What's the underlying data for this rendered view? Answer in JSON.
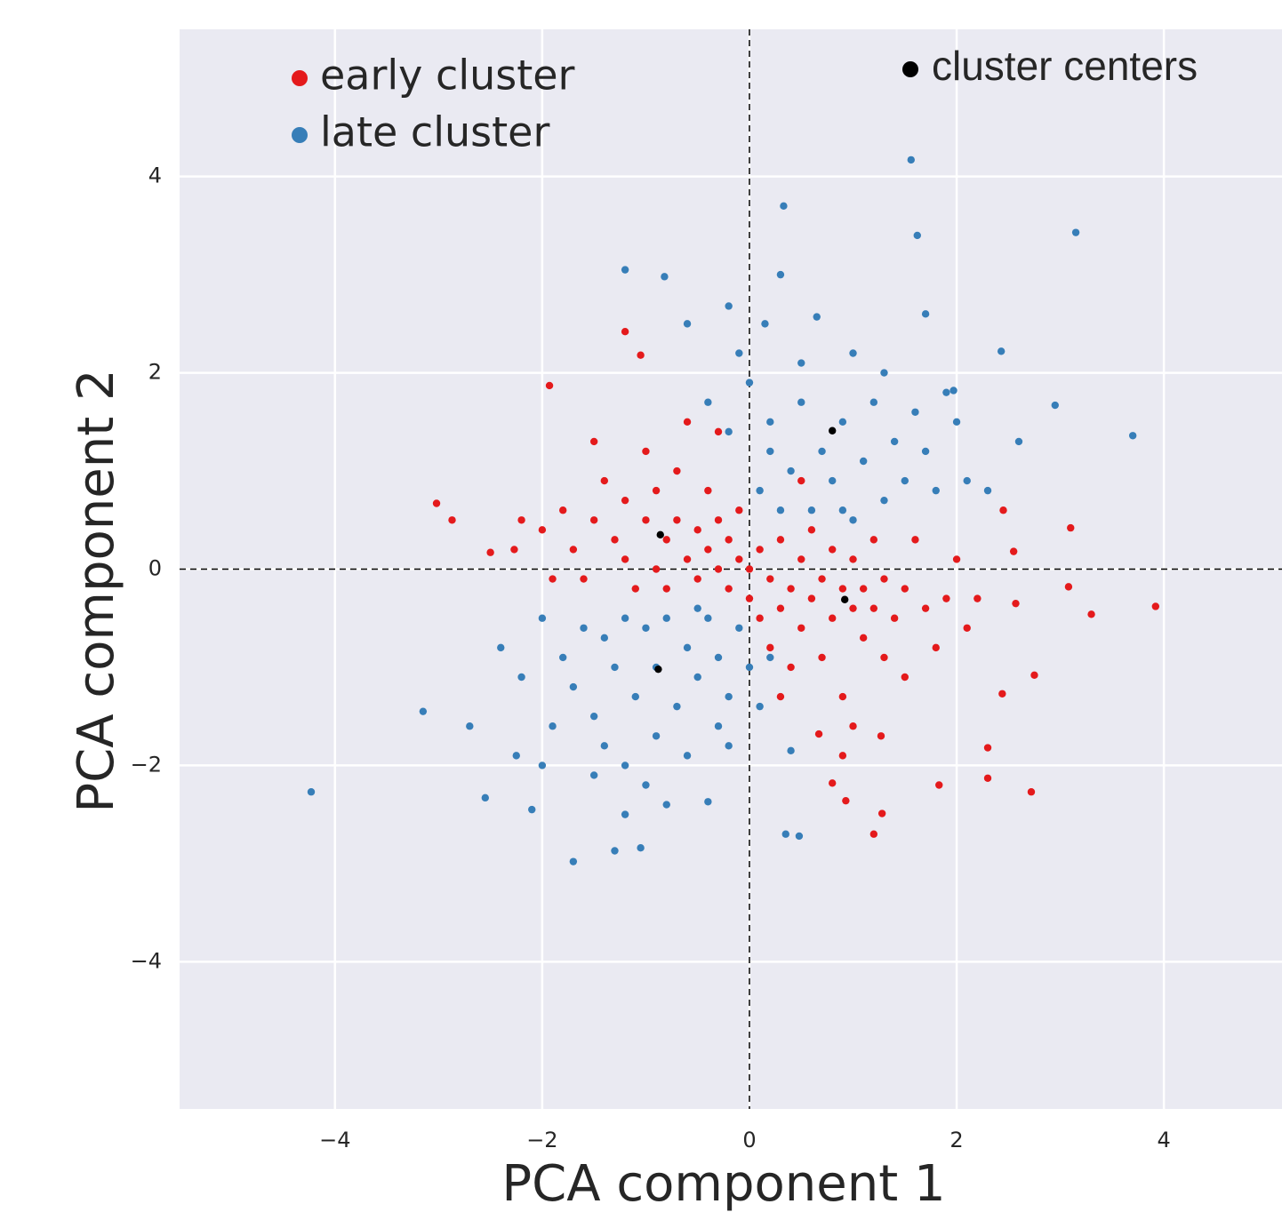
{
  "chart_data": {
    "type": "scatter",
    "xlabel": "PCA component 1",
    "ylabel": "PCA component 2",
    "xlim": [
      -5.5,
      5.14
    ],
    "ylim": [
      -5.5,
      5.5
    ],
    "xticks": [
      {
        "value": -4,
        "label": "−4"
      },
      {
        "value": -2,
        "label": "−2"
      },
      0,
      2,
      4
    ],
    "yticks": [
      {
        "value": -4,
        "label": "−4"
      },
      {
        "value": -2,
        "label": "−2"
      },
      0,
      2,
      4
    ],
    "grid": true,
    "hlines": [
      0
    ],
    "vlines": [
      0
    ],
    "series": [
      {
        "name": "early cluster",
        "color": "#e41a1c",
        "legend": "upper left",
        "x": [
          3.92,
          3.3,
          3.1,
          3.08,
          2.75,
          2.72,
          2.44,
          2.3,
          2.3,
          1.83,
          1.2,
          1.28,
          0.93,
          0.8,
          -1.2,
          -1.05,
          -1.93,
          -3.02,
          -2.87,
          -2.5,
          -2.27,
          2.45,
          2.55,
          0.67,
          1.27,
          2.57,
          -2.0,
          -1.8,
          -1.7,
          -1.6,
          -1.5,
          -1.4,
          -1.3,
          -1.2,
          -1.2,
          -1.1,
          -1.0,
          -1.0,
          -0.9,
          -0.9,
          -0.8,
          -0.8,
          -0.7,
          -0.7,
          -0.6,
          -0.6,
          -0.5,
          -0.5,
          -0.4,
          -0.4,
          -0.3,
          -0.3,
          -0.2,
          -0.2,
          -0.1,
          -0.1,
          0.0,
          0.0,
          0.1,
          0.1,
          0.2,
          0.2,
          0.3,
          0.3,
          0.4,
          0.4,
          0.5,
          0.5,
          0.6,
          0.6,
          0.7,
          0.7,
          0.8,
          0.8,
          0.9,
          0.9,
          1.0,
          1.0,
          1.1,
          1.1,
          1.2,
          1.2,
          1.3,
          1.3,
          1.4,
          1.5,
          1.5,
          1.6,
          1.7,
          1.8,
          1.9,
          2.0,
          2.1,
          2.2,
          -1.5,
          -0.3,
          0.5,
          1.0,
          -2.2,
          -1.9,
          0.3,
          0.9
        ],
        "values": [
          -0.38,
          -0.46,
          0.42,
          -0.18,
          -1.08,
          -2.27,
          -1.27,
          -1.82,
          -2.13,
          -2.2,
          -2.7,
          -2.49,
          -2.36,
          -2.18,
          2.42,
          2.18,
          1.87,
          0.67,
          0.5,
          0.17,
          0.2,
          0.6,
          0.18,
          -1.68,
          -1.7,
          -0.35,
          0.4,
          0.6,
          0.2,
          -0.1,
          0.5,
          0.9,
          0.3,
          0.1,
          0.7,
          -0.2,
          0.5,
          1.2,
          0.0,
          0.8,
          0.3,
          -0.2,
          1.0,
          0.5,
          0.1,
          1.5,
          0.4,
          -0.1,
          0.8,
          0.2,
          0.0,
          0.5,
          0.3,
          -0.2,
          0.1,
          0.6,
          0.0,
          -0.3,
          0.2,
          -0.5,
          -0.1,
          -0.8,
          0.3,
          -0.4,
          -0.2,
          -1.0,
          0.1,
          -0.6,
          -0.3,
          0.4,
          -0.9,
          -0.1,
          -0.5,
          0.2,
          -0.2,
          -1.3,
          -0.4,
          0.1,
          -0.7,
          -0.2,
          -0.4,
          0.3,
          -0.9,
          -0.1,
          -0.5,
          -0.2,
          -1.1,
          0.3,
          -0.4,
          -0.8,
          -0.3,
          0.1,
          -0.6,
          -0.3,
          1.3,
          1.4,
          0.9,
          -1.6,
          0.5,
          -0.1,
          -1.3,
          -1.9
        ]
      },
      {
        "name": "late cluster",
        "color": "#377eb8",
        "legend": "upper left",
        "x": [
          -4.23,
          -3.15,
          -2.7,
          -2.55,
          -1.7,
          -1.3,
          -1.05,
          -1.2,
          -0.4,
          0.35,
          0.48,
          1.56,
          0.33,
          1.62,
          3.15,
          -1.2,
          -0.82,
          0.3,
          -0.2,
          0.65,
          1.7,
          2.43,
          2.95,
          3.7,
          2.6,
          1.97,
          0.15,
          -0.6,
          -2.25,
          -2.1,
          0.4,
          -0.2,
          -2.0,
          0.2,
          0.4,
          0.5,
          0.6,
          0.7,
          0.8,
          0.9,
          1.0,
          1.1,
          1.2,
          1.3,
          1.4,
          1.5,
          1.6,
          1.7,
          1.8,
          2.0,
          2.1,
          2.3,
          0.1,
          0.3,
          0.0,
          0.5,
          1.0,
          1.3,
          0.2,
          -0.2,
          -0.4,
          -0.1,
          0.9,
          1.9,
          -0.9,
          -1.0,
          -1.1,
          -1.2,
          -1.3,
          -1.4,
          -1.5,
          -1.6,
          -1.7,
          -1.8,
          -1.9,
          -2.0,
          -2.2,
          -2.4,
          -0.8,
          -0.7,
          -0.6,
          -0.5,
          -0.4,
          -0.3,
          -0.2,
          -0.1,
          0.0,
          0.1,
          0.2,
          -0.6,
          -0.9,
          -1.2,
          -1.5,
          -0.3,
          -1.0,
          -0.5,
          -1.4,
          -0.8
        ],
        "values": [
          -2.27,
          -1.45,
          -1.6,
          -2.33,
          -2.98,
          -2.87,
          -2.84,
          -2.5,
          -2.37,
          -2.7,
          -2.72,
          4.17,
          3.7,
          3.4,
          3.43,
          3.05,
          2.98,
          3.0,
          2.68,
          2.57,
          2.6,
          2.22,
          1.67,
          1.36,
          1.3,
          1.82,
          2.5,
          2.5,
          -1.9,
          -2.45,
          -1.85,
          -1.8,
          -2.0,
          1.5,
          1.0,
          1.7,
          0.6,
          1.2,
          0.9,
          1.5,
          0.5,
          1.1,
          1.7,
          0.7,
          1.3,
          0.9,
          1.6,
          1.2,
          0.8,
          1.5,
          0.9,
          0.8,
          0.8,
          0.6,
          1.9,
          2.1,
          2.2,
          2.0,
          1.2,
          1.4,
          1.7,
          2.2,
          0.6,
          1.8,
          -1.0,
          -0.6,
          -1.3,
          -0.5,
          -1.0,
          -0.7,
          -1.5,
          -0.6,
          -1.2,
          -0.9,
          -1.6,
          -0.5,
          -1.1,
          -0.8,
          -0.5,
          -1.4,
          -0.8,
          -1.1,
          -0.5,
          -0.9,
          -1.3,
          -0.6,
          -1.0,
          -1.4,
          -0.9,
          -1.9,
          -1.7,
          -2.0,
          -2.1,
          -1.6,
          -2.2,
          -0.4,
          -1.8,
          -2.4
        ]
      },
      {
        "name": "cluster centers",
        "color": "#000000",
        "legend": "upper right",
        "x": [
          -0.86,
          0.8,
          0.92,
          -0.88
        ],
        "values": [
          0.35,
          1.41,
          -0.31,
          -1.02
        ]
      }
    ]
  }
}
